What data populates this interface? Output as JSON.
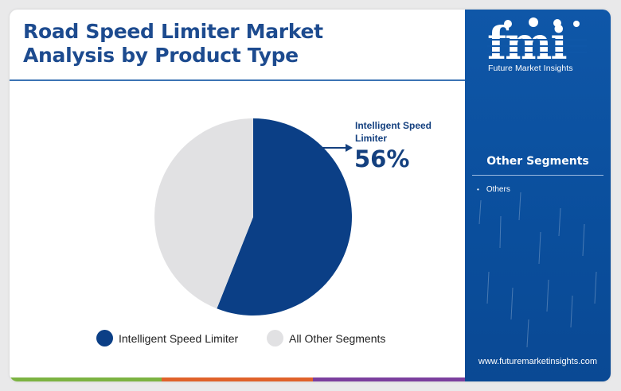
{
  "title_line1": "Road Speed Limiter Market",
  "title_line2": "Analysis by Product Type",
  "chart_data": {
    "type": "pie",
    "title": "Road Speed Limiter Market Analysis by Product Type",
    "slices": [
      {
        "label": "Intelligent Speed Limiter",
        "value": 56,
        "color": "#0b3f86"
      },
      {
        "label": "All Other Segments",
        "value": 44,
        "color": "#e1e1e3"
      }
    ],
    "callout": {
      "label": "Intelligent Speed Limiter",
      "value_text": "56%"
    },
    "legend_position": "bottom"
  },
  "legend": [
    {
      "label": "Intelligent Speed Limiter",
      "color": "#0b3f86"
    },
    {
      "label": "All Other Segments",
      "color": "#e1e1e3"
    }
  ],
  "bottom_bar_colors": [
    "#7cb342",
    "#e0622a",
    "#7b3f9e"
  ],
  "sidebar": {
    "logo_text": "fmi",
    "brand_name": "Future Market Insights",
    "segments_title": "Other Segments",
    "segments": [
      "Others"
    ],
    "website": "www.futuremarketinsights.com"
  }
}
